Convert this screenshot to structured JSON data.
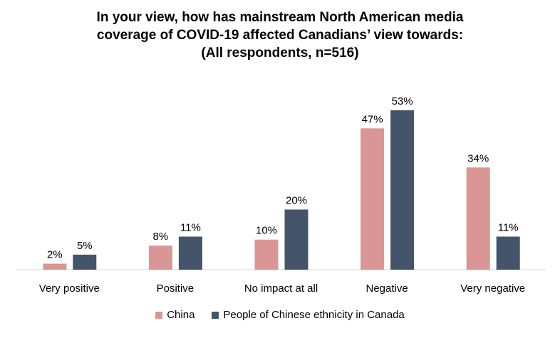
{
  "chart_data": {
    "type": "bar",
    "title_lines": [
      "In your view, how has mainstream North American media",
      "coverage of COVID-19 affected Canadians’ view towards:",
      "(All respondents, n=516)"
    ],
    "categories": [
      "Very positive",
      "Positive",
      "No impact at all",
      "Negative",
      "Very negative"
    ],
    "series": [
      {
        "name": "China",
        "color": "#D99694",
        "values": [
          2,
          8,
          10,
          47,
          34
        ],
        "labels": [
          "2%",
          "8%",
          "10%",
          "47%",
          "34%"
        ]
      },
      {
        "name": "People of Chinese ethnicity in Canada",
        "color": "#44546A",
        "values": [
          5,
          11,
          20,
          53,
          11
        ],
        "labels": [
          "5%",
          "11%",
          "20%",
          "53%",
          "11%"
        ]
      }
    ],
    "ylim": [
      0,
      53
    ],
    "grid": false,
    "legend_position": "bottom"
  }
}
